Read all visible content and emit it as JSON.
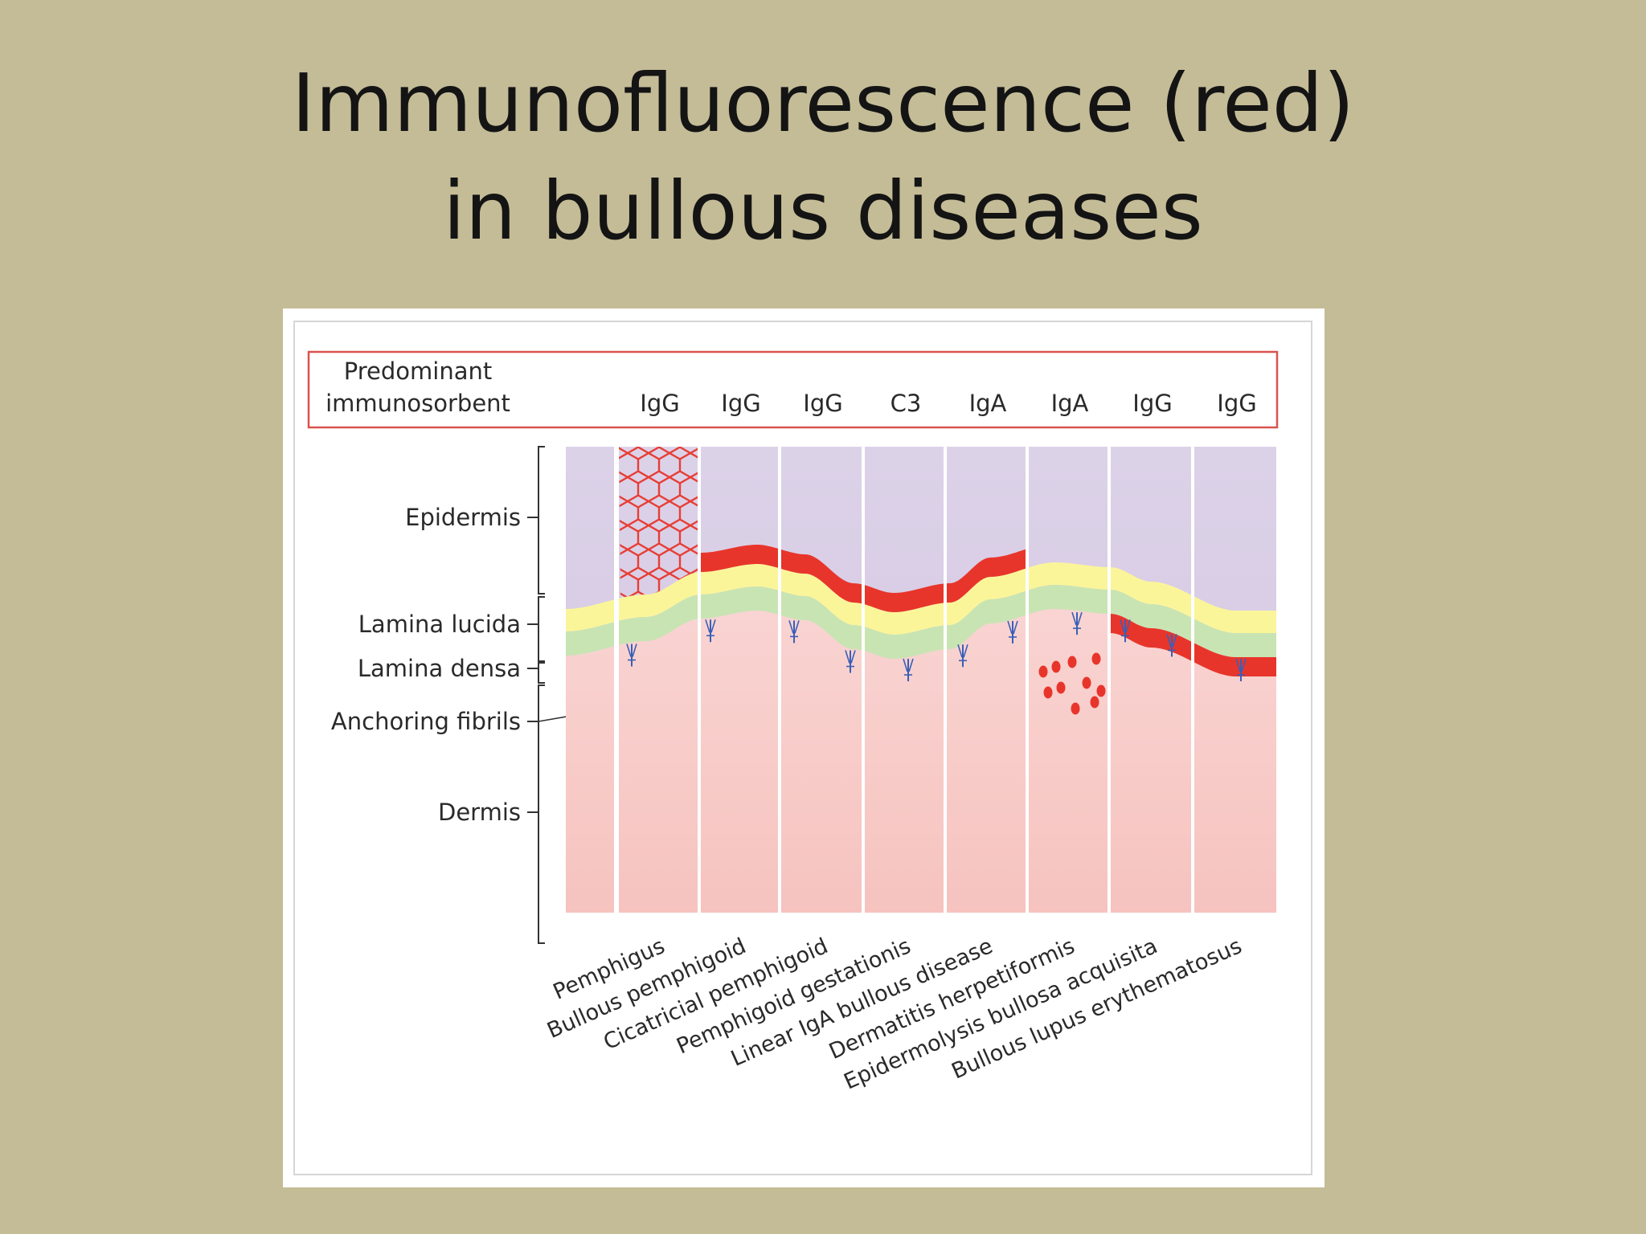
{
  "slide": {
    "title_line1": "Immunofluorescence (red)",
    "title_line2": "in bullous diseases"
  },
  "diagram": {
    "header_label_line1": "Predominant",
    "header_label_line2": "immunosorbent",
    "layers": [
      {
        "key": "epidermis",
        "label": "Epidermis"
      },
      {
        "key": "lamina_lucida",
        "label": "Lamina lucida"
      },
      {
        "key": "lamina_densa",
        "label": "Lamina densa"
      },
      {
        "key": "anchoring_fibrils",
        "label": "Anchoring fibrils"
      },
      {
        "key": "dermis",
        "label": "Dermis"
      }
    ],
    "diseases": [
      {
        "name": "Pemphigus",
        "immunosorbent": "IgG",
        "deposit": "intercellular"
      },
      {
        "name": "Bullous pemphigoid",
        "immunosorbent": "IgG",
        "deposit": "lamina-lucida-upper"
      },
      {
        "name": "Cicatricial pemphigoid",
        "immunosorbent": "IgG",
        "deposit": "lamina-lucida-upper"
      },
      {
        "name": "Pemphigoid gestationis",
        "immunosorbent": "C3",
        "deposit": "lamina-lucida-upper"
      },
      {
        "name": "Linear IgA bullous disease",
        "immunosorbent": "IgA",
        "deposit": "lamina-lucida-upper"
      },
      {
        "name": "Dermatitis herpetiformis",
        "immunosorbent": "IgA",
        "deposit": "dermal-papillae-granular"
      },
      {
        "name": "Epidermolysis bullosa acquisita",
        "immunosorbent": "IgG",
        "deposit": "sub-lamina-densa"
      },
      {
        "name": "Bullous lupus erythematosus",
        "immunosorbent": "IgG",
        "deposit": "sub-lamina-densa"
      }
    ],
    "colors": {
      "epidermis": "#d3c6e0",
      "lamina_lucida": "#fbf59a",
      "lamina_densa": "#c9e4b3",
      "dermis": "#f6c3bf",
      "deposit": "#e8352b",
      "fibril": "#3a5fb8",
      "header_border": "#d9534f"
    }
  }
}
